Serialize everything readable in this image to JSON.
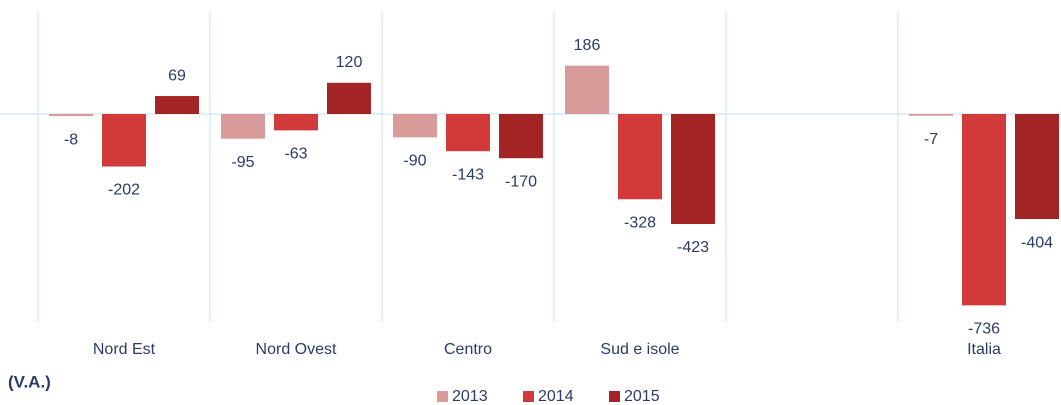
{
  "chart_data": {
    "type": "bar",
    "annotation": "(V.A.)",
    "categories": [
      "Nord Est",
      "Nord Ovest",
      "Centro",
      "Sud e isole",
      null,
      "Italia"
    ],
    "series": [
      {
        "name": "2013",
        "color": "#d99a9a",
        "values": [
          -8,
          -95,
          -90,
          186,
          null,
          -7
        ]
      },
      {
        "name": "2014",
        "color": "#d23a3a",
        "values": [
          -202,
          -63,
          -143,
          -328,
          null,
          -736
        ]
      },
      {
        "name": "2015",
        "color": "#a32424",
        "values": [
          69,
          120,
          -170,
          -423,
          null,
          -404
        ]
      }
    ],
    "ylim": [
      -800,
      400
    ],
    "legend": "bottom"
  }
}
